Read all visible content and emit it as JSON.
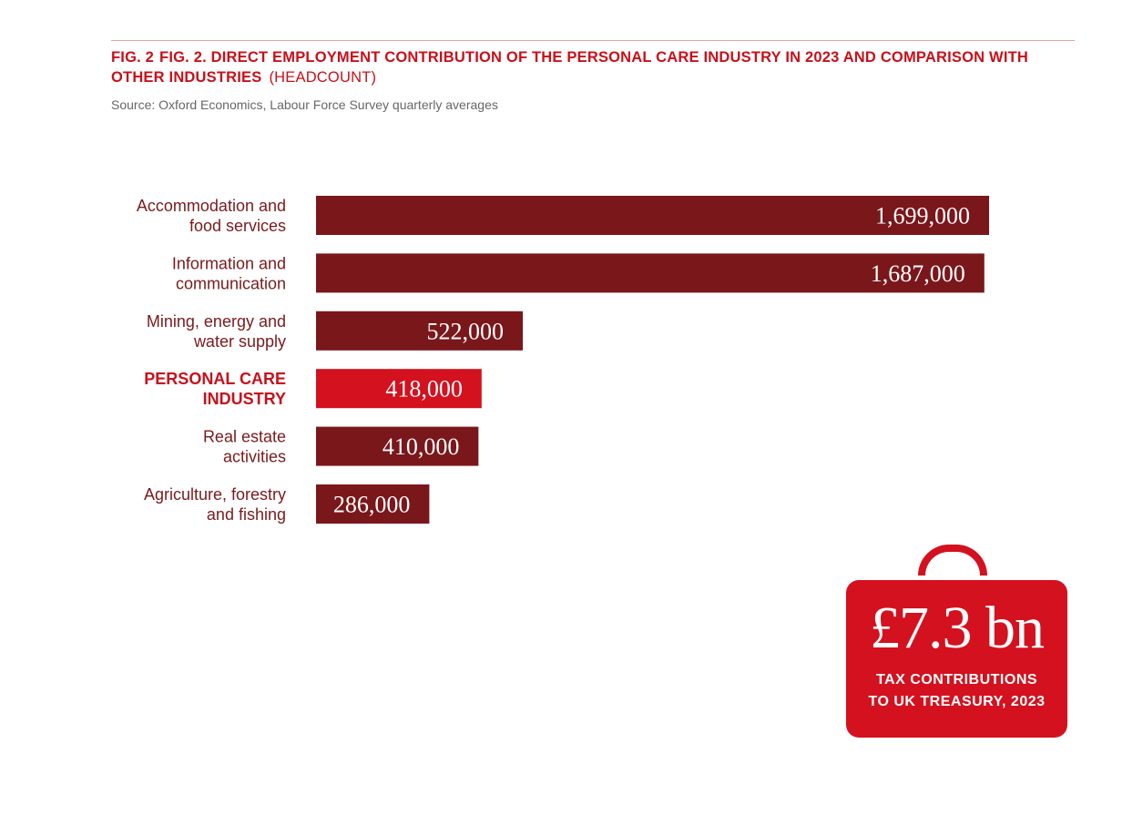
{
  "header": {
    "fig_tag": "FIG. 2",
    "title": "FIG. 2. DIRECT EMPLOYMENT CONTRIBUTION OF THE PERSONAL CARE INDUSTRY IN 2023 AND COMPARISON WITH OTHER INDUSTRIES",
    "unit": "(HEADCOUNT)",
    "source": "Source: Oxford Economics, Labour Force Survey quarterly averages"
  },
  "chart_data": {
    "type": "bar",
    "orientation": "horizontal",
    "categories": [
      [
        "Accommodation and",
        "food services"
      ],
      [
        "Information and",
        "communication"
      ],
      [
        "Mining, energy and",
        "water supply"
      ],
      [
        "PERSONAL CARE",
        "INDUSTRY"
      ],
      [
        "Real estate",
        "activities"
      ],
      [
        "Agriculture, forestry",
        "and fishing"
      ]
    ],
    "values": [
      1699000,
      1687000,
      522000,
      418000,
      410000,
      286000
    ],
    "value_labels": [
      "1,699,000",
      "1,687,000",
      "522,000",
      "418,000",
      "410,000",
      "286,000"
    ],
    "highlight_index": 3,
    "colors": {
      "default": "#7a171b",
      "highlight": "#d4111e",
      "label": "#7a1a1c",
      "highlight_label": "#c8101a"
    },
    "xlim": [
      0,
      1699000
    ],
    "grid": false,
    "legend": "none"
  },
  "callout": {
    "amount": "£7.3 bn",
    "caption_line1": "TAX CONTRIBUTIONS",
    "caption_line2": "TO UK TREASURY, 2023",
    "color": "#d4111e"
  }
}
